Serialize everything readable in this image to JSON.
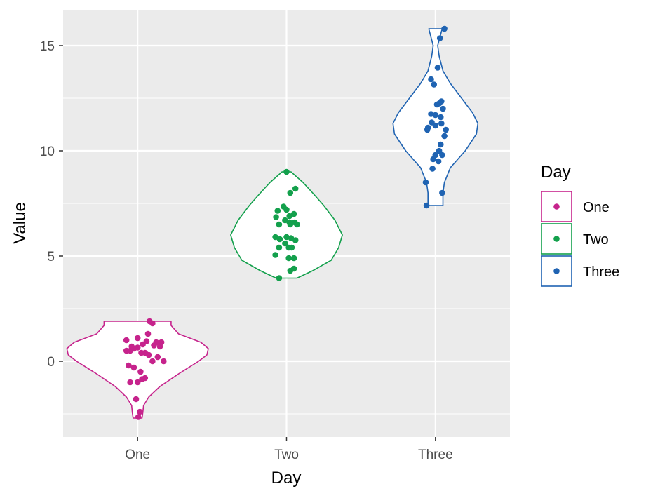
{
  "chart_data": {
    "type": "violin",
    "xlabel": "Day",
    "ylabel": "Value",
    "categories": [
      "One",
      "Two",
      "Three"
    ],
    "ylim": [
      -3.6,
      16.7
    ],
    "yticks": [
      0,
      5,
      10,
      15
    ],
    "grid": true,
    "legend": {
      "title": "Day",
      "position": "right"
    },
    "series": [
      {
        "name": "One",
        "color": "#C6238C",
        "violin_range": [
          -2.7,
          1.9
        ],
        "violin_width": [
          [
            -2.7,
            0.06
          ],
          [
            -2.45,
            0.07
          ],
          [
            -2.1,
            0.08
          ],
          [
            -1.7,
            0.15
          ],
          [
            -1.2,
            0.3
          ],
          [
            -0.6,
            0.55
          ],
          [
            0.0,
            0.82
          ],
          [
            0.3,
            0.93
          ],
          [
            0.6,
            0.95
          ],
          [
            0.9,
            0.85
          ],
          [
            1.3,
            0.55
          ],
          [
            1.7,
            0.45
          ],
          [
            1.9,
            0.45
          ]
        ],
        "points": [
          [
            -0.15,
            1.0
          ],
          [
            -0.08,
            0.7
          ],
          [
            0.0,
            1.1
          ],
          [
            0.07,
            0.8
          ],
          [
            0.14,
            1.3
          ],
          [
            0.2,
            1.8
          ],
          [
            0.25,
            0.9
          ],
          [
            0.32,
            0.9
          ],
          [
            -0.15,
            0.5
          ],
          [
            -0.1,
            0.5
          ],
          [
            -0.05,
            0.6
          ],
          [
            0.0,
            0.65
          ],
          [
            0.05,
            0.4
          ],
          [
            0.1,
            0.4
          ],
          [
            0.15,
            0.3
          ],
          [
            0.2,
            0.0
          ],
          [
            0.3,
            0.7
          ],
          [
            0.35,
            0.0
          ],
          [
            -0.12,
            -0.2
          ],
          [
            -0.05,
            -0.3
          ],
          [
            0.04,
            -0.5
          ],
          [
            0.1,
            -0.8
          ],
          [
            -0.1,
            -1.0
          ],
          [
            0.0,
            -1.0
          ],
          [
            0.06,
            -0.85
          ],
          [
            -0.02,
            -1.8
          ],
          [
            0.03,
            -2.4
          ],
          [
            0.01,
            -2.65
          ],
          [
            0.27,
            0.2
          ],
          [
            0.22,
            0.75
          ],
          [
            0.12,
            0.95
          ],
          [
            0.16,
            1.9
          ]
        ]
      },
      {
        "name": "Two",
        "color": "#13A04C",
        "violin_range": [
          3.95,
          9.0
        ],
        "violin_width": [
          [
            3.95,
            0.14
          ],
          [
            4.3,
            0.35
          ],
          [
            4.8,
            0.6
          ],
          [
            5.4,
            0.7
          ],
          [
            6.0,
            0.75
          ],
          [
            6.7,
            0.65
          ],
          [
            7.4,
            0.5
          ],
          [
            8.0,
            0.35
          ],
          [
            8.5,
            0.22
          ],
          [
            9.0,
            0.06
          ]
        ],
        "points": [
          [
            0.0,
            9.0
          ],
          [
            -0.12,
            7.15
          ],
          [
            -0.04,
            7.35
          ],
          [
            0.0,
            7.2
          ],
          [
            0.04,
            6.9
          ],
          [
            0.1,
            7.0
          ],
          [
            0.05,
            8.0
          ],
          [
            0.12,
            8.2
          ],
          [
            -0.14,
            6.85
          ],
          [
            -0.1,
            6.5
          ],
          [
            -0.02,
            6.7
          ],
          [
            0.05,
            6.5
          ],
          [
            0.11,
            6.6
          ],
          [
            0.04,
            6.6
          ],
          [
            0.14,
            6.5
          ],
          [
            -0.15,
            5.9
          ],
          [
            -0.09,
            5.8
          ],
          [
            0.0,
            5.9
          ],
          [
            0.06,
            5.85
          ],
          [
            0.12,
            5.75
          ],
          [
            -0.1,
            5.4
          ],
          [
            -0.02,
            5.6
          ],
          [
            0.03,
            5.4
          ],
          [
            0.07,
            5.4
          ],
          [
            0.1,
            4.9
          ],
          [
            -0.15,
            5.05
          ],
          [
            0.03,
            4.9
          ],
          [
            0.05,
            4.3
          ],
          [
            0.1,
            4.4
          ],
          [
            -0.1,
            3.95
          ]
        ]
      },
      {
        "name": "Three",
        "color": "#1F63B2",
        "violin_range": [
          7.4,
          15.8
        ],
        "violin_width": [
          [
            7.4,
            0.1
          ],
          [
            8.0,
            0.1
          ],
          [
            8.5,
            0.12
          ],
          [
            9.2,
            0.2
          ],
          [
            10.0,
            0.4
          ],
          [
            10.8,
            0.55
          ],
          [
            11.3,
            0.57
          ],
          [
            11.8,
            0.5
          ],
          [
            12.5,
            0.35
          ],
          [
            13.2,
            0.2
          ],
          [
            13.8,
            0.1
          ],
          [
            14.5,
            0.05
          ],
          [
            15.0,
            0.03
          ],
          [
            15.8,
            0.09
          ]
        ],
        "points": [
          [
            0.12,
            15.8
          ],
          [
            0.06,
            15.35
          ],
          [
            0.03,
            13.95
          ],
          [
            -0.06,
            13.4
          ],
          [
            -0.02,
            13.15
          ],
          [
            0.02,
            12.2
          ],
          [
            0.08,
            12.35
          ],
          [
            0.05,
            12.25
          ],
          [
            0.1,
            12.0
          ],
          [
            0.0,
            11.7
          ],
          [
            -0.06,
            11.75
          ],
          [
            0.07,
            11.6
          ],
          [
            -0.1,
            11.1
          ],
          [
            -0.05,
            11.35
          ],
          [
            0.0,
            11.2
          ],
          [
            0.08,
            11.3
          ],
          [
            -0.11,
            11.0
          ],
          [
            0.14,
            11.0
          ],
          [
            0.12,
            10.7
          ],
          [
            0.07,
            10.3
          ],
          [
            0.05,
            10.0
          ],
          [
            0.09,
            9.8
          ],
          [
            0.0,
            9.8
          ],
          [
            -0.03,
            9.6
          ],
          [
            0.04,
            9.5
          ],
          [
            -0.04,
            9.15
          ],
          [
            -0.13,
            8.5
          ],
          [
            0.09,
            8.0
          ],
          [
            -0.12,
            7.4
          ]
        ]
      }
    ]
  }
}
